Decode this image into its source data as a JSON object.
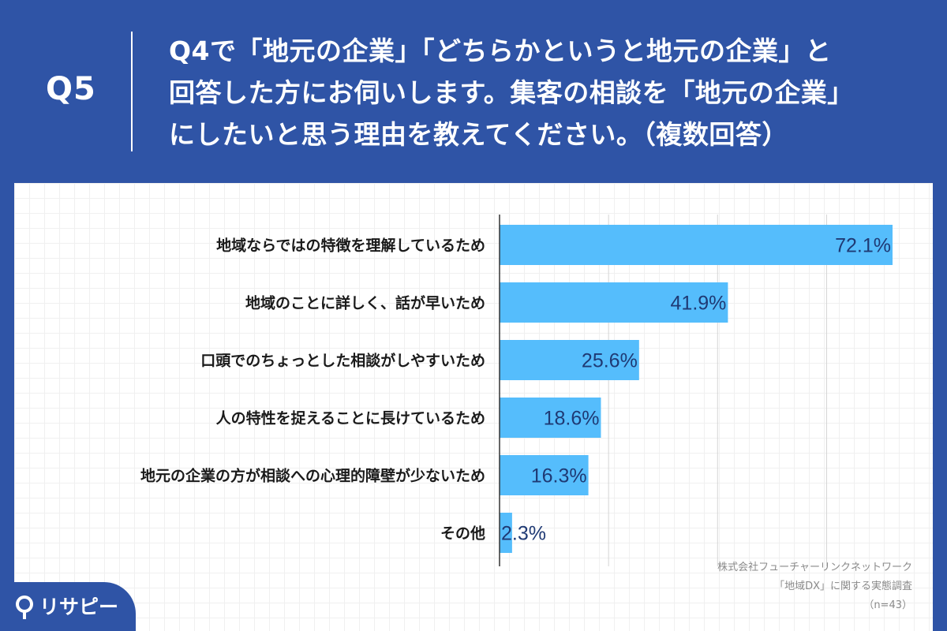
{
  "header": {
    "badge": "Q5",
    "question_lines": [
      "Q4で「地元の企業」「どちらかというと地元の企業」と",
      "回答した方にお伺いします。集客の相談を「地元の企業」",
      "にしたいと思う理由を教えてください。（複数回答）"
    ]
  },
  "colors": {
    "background": "#2f54a6",
    "bar": "#55bdfc",
    "value_text": "#1f3a74",
    "panel": "#ffffff"
  },
  "chart_data": {
    "type": "bar",
    "orientation": "horizontal",
    "categories": [
      "地域ならではの特徴を理解しているため",
      "地域のことに詳しく、話が早いため",
      "口頭でのちょっとした相談がしやすいため",
      "人の特性を捉えることに長けているため",
      "地元の企業の方が相談への心理的障壁が少ないため",
      "その他"
    ],
    "values": [
      72.1,
      41.9,
      25.6,
      18.6,
      16.3,
      2.3
    ],
    "value_labels": [
      "72.1%",
      "41.9%",
      "25.6%",
      "18.6%",
      "16.3%",
      "2.3%"
    ],
    "xlim": [
      0,
      72.1
    ],
    "gridlines": [
      20,
      40,
      60
    ],
    "grid": true
  },
  "credit": {
    "line1": "株式会社フューチャーリンクネットワーク",
    "line2": "「地域DX」に関する実態調査",
    "line3": "（n=43）"
  },
  "logo": {
    "icon": "pin-icon",
    "text": "リサピー"
  }
}
